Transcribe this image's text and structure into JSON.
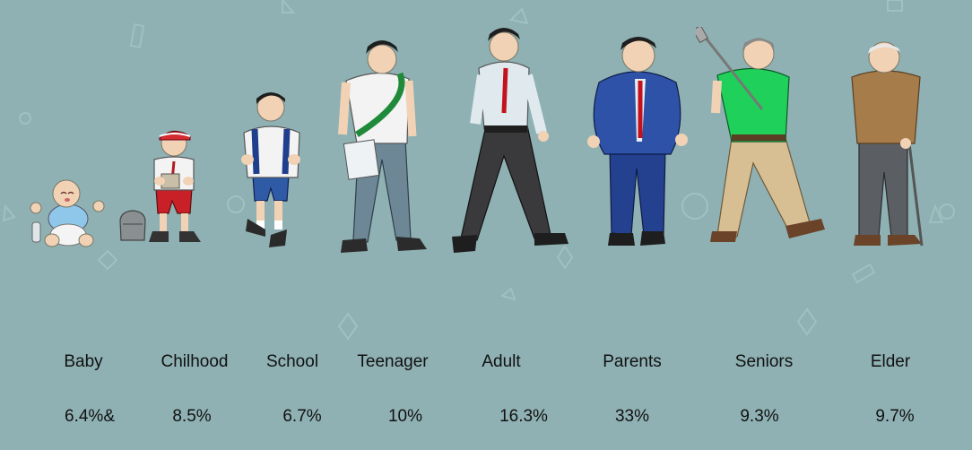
{
  "stages": [
    {
      "id": "baby",
      "label": "Baby",
      "value": "6.4%&"
    },
    {
      "id": "childhood",
      "label": "Chilhood",
      "value": "8.5%"
    },
    {
      "id": "school",
      "label": "School",
      "value": "6.7%"
    },
    {
      "id": "teenager",
      "label": "Teenager",
      "value": "10%"
    },
    {
      "id": "adult",
      "label": "Adult",
      "value": "16.3%"
    },
    {
      "id": "parents",
      "label": "Parents",
      "value": "33%"
    },
    {
      "id": "seniors",
      "label": "Seniors",
      "value": "9.3%"
    },
    {
      "id": "elder",
      "label": "Elder",
      "value": "9.7%"
    }
  ],
  "colors": {
    "background": "#8fb1b3",
    "text": "#111111",
    "skin": "#f2d2b4",
    "hair": "#1e1e1e"
  }
}
